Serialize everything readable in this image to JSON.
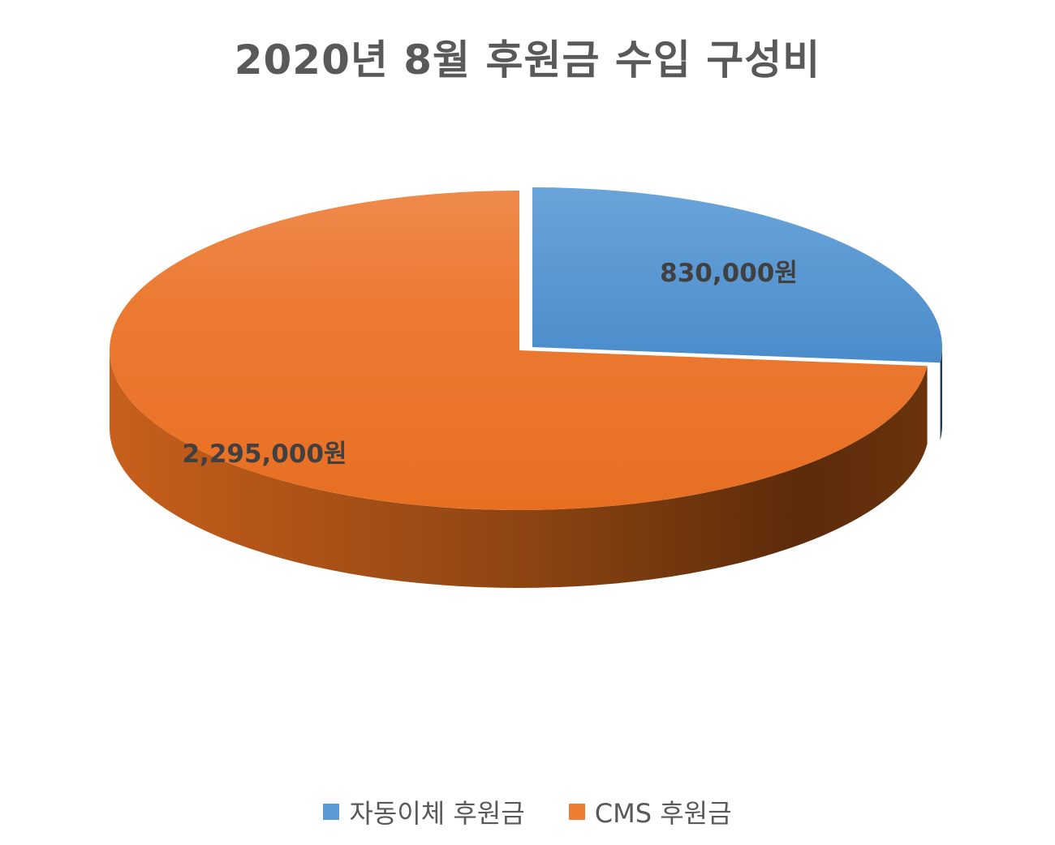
{
  "chart_data": {
    "type": "pie",
    "title": "2020년 8월 후원금 수입 구성비",
    "categories": [
      "자동이체 후원금",
      "CMS 후원금"
    ],
    "values": [
      830000,
      2295000
    ],
    "data_labels": [
      "830,000원",
      "2,295,000원"
    ],
    "colors": [
      "#5B9BD5",
      "#ED7D31"
    ],
    "three_d": true,
    "exploded_slice": "자동이체 후원금",
    "legend_position": "bottom"
  }
}
